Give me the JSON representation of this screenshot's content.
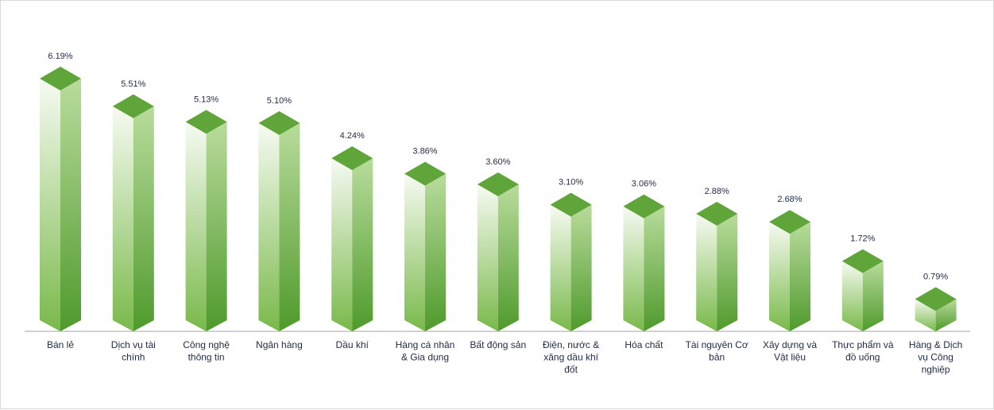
{
  "chart_data": {
    "type": "bar",
    "style": "3d-column",
    "categories": [
      "Bán lẻ",
      "Dịch vụ tài chính",
      "Công nghệ thông tin",
      "Ngân hàng",
      "Dầu khí",
      "Hàng cá nhân & Gia dụng",
      "Bất động sản",
      "Điện, nước & xăng dầu khí đốt",
      "Hóa chất",
      "Tài nguyên Cơ bản",
      "Xây dựng và Vật liệu",
      "Thực phẩm và đồ uống",
      "Hàng & Dịch vụ Công nghiệp"
    ],
    "category_lines": [
      [
        "Bán lẻ"
      ],
      [
        "Dịch vụ tài",
        "chính"
      ],
      [
        "Công nghệ",
        "thông tin"
      ],
      [
        "Ngân hàng"
      ],
      [
        "Dầu khí"
      ],
      [
        "Hàng cá nhân",
        "& Gia dụng"
      ],
      [
        "Bất động sản"
      ],
      [
        "Điện, nước &",
        "xăng dầu khí",
        "đốt"
      ],
      [
        "Hóa chất"
      ],
      [
        "Tài nguyên Cơ",
        "bản"
      ],
      [
        "Xây dựng và",
        "Vật liệu"
      ],
      [
        "Thực phẩm và",
        "đồ uống"
      ],
      [
        "Hàng & Dịch",
        "vụ Công",
        "nghiệp"
      ]
    ],
    "values": [
      6.19,
      5.51,
      5.13,
      5.1,
      4.24,
      3.86,
      3.6,
      3.1,
      3.06,
      2.88,
      2.68,
      1.72,
      0.79
    ],
    "value_labels": [
      "6.19%",
      "5.51%",
      "5.13%",
      "5.10%",
      "4.24%",
      "3.86%",
      "3.60%",
      "3.10%",
      "3.06%",
      "2.88%",
      "2.68%",
      "1.72%",
      "0.79%"
    ],
    "title": "",
    "xlabel": "",
    "ylabel": "",
    "ylim": [
      0,
      6.6
    ],
    "grid": false,
    "legend": "none",
    "colors": {
      "front_top": "#f7fbf3",
      "front_bottom": "#79b94a",
      "side_top": "#b9dc9c",
      "side_bottom": "#4f9a2c",
      "top_face": "#5fa53a",
      "axis": "#a6a6a6",
      "text": "#1f2a44"
    }
  }
}
